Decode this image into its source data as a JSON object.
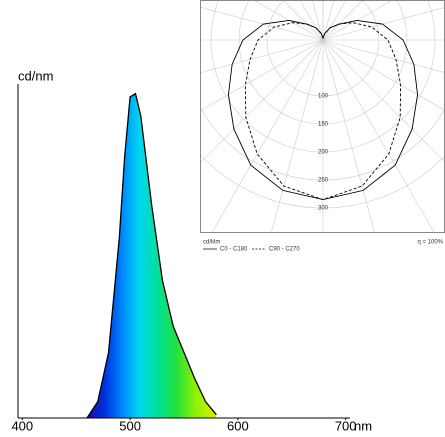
{
  "chart_data": [
    {
      "type": "area",
      "ylabel": "cd/nm",
      "xlabel": "nm",
      "x": [
        460,
        470,
        480,
        490,
        495,
        500,
        505,
        510,
        520,
        530,
        540,
        550,
        560,
        570,
        580
      ],
      "values": [
        0,
        0.05,
        0.2,
        0.55,
        0.8,
        0.98,
        0.99,
        0.92,
        0.65,
        0.42,
        0.28,
        0.2,
        0.12,
        0.05,
        0.01
      ],
      "xlim": [
        396,
        704
      ],
      "ylim": [
        0,
        1.05
      ],
      "xticks": [
        400,
        500,
        600,
        700
      ]
    },
    {
      "type": "polar",
      "r_label": "cd/klm",
      "efficiency_label": "η = 100%",
      "angles": [
        -180,
        -165,
        -150,
        -135,
        -120,
        -105,
        -90,
        -75,
        -60,
        -45,
        -30,
        -15,
        0,
        15,
        30,
        45,
        60,
        75,
        90,
        105,
        120,
        135,
        150,
        165,
        180
      ],
      "series": [
        {
          "name": "C0 - C180",
          "color": "#000000",
          "dashed": false,
          "values": [
            3,
            12,
            25,
            40,
            70,
            110,
            143,
            168,
            195,
            225,
            258,
            278,
            285,
            278,
            258,
            225,
            195,
            168,
            143,
            110,
            70,
            40,
            25,
            12,
            3
          ]
        },
        {
          "name": "C90 - C270",
          "color": "#000000",
          "dashed": true,
          "values": [
            3,
            12,
            25,
            40,
            62,
            90,
            116,
            135,
            160,
            195,
            235,
            270,
            285,
            270,
            235,
            195,
            160,
            135,
            116,
            90,
            62,
            40,
            25,
            12,
            3
          ]
        }
      ],
      "rticks": [
        100,
        150,
        200,
        250,
        300
      ]
    }
  ]
}
